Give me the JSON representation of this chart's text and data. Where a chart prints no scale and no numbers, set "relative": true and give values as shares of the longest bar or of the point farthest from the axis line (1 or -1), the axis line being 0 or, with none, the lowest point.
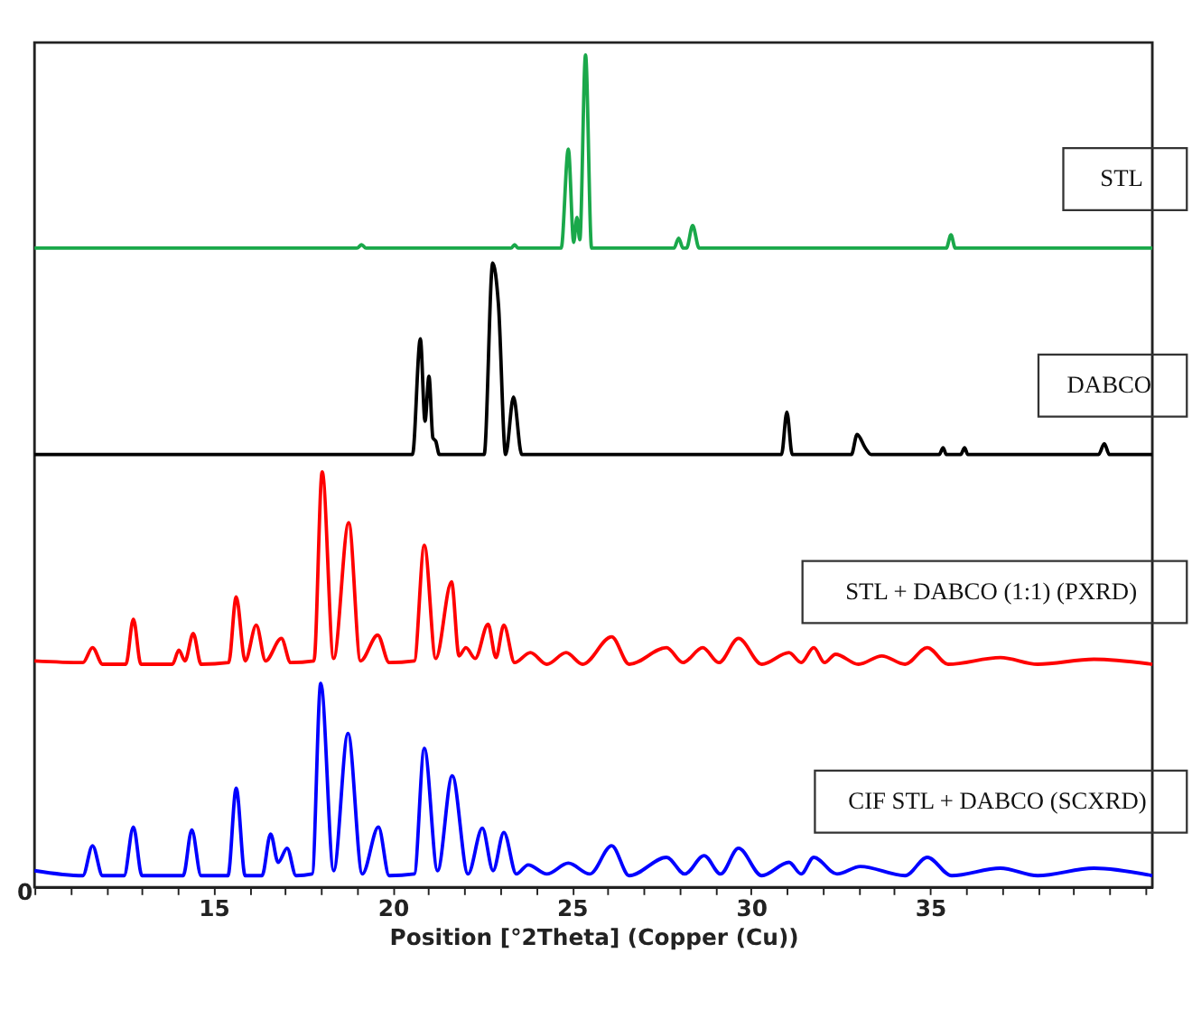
{
  "chart_data": {
    "type": "line",
    "relative": true,
    "xlabel": "Position [°2Theta] (Copper (Cu))",
    "xlim": [
      10,
      41.2
    ],
    "annotations": [
      "0"
    ],
    "xticks": [
      {
        "value": 10,
        "label": null
      },
      {
        "value": 11,
        "label": null
      },
      {
        "value": 12,
        "label": null
      },
      {
        "value": 13,
        "label": null
      },
      {
        "value": 14,
        "label": null
      },
      15,
      {
        "value": 16,
        "label": null
      },
      {
        "value": 17,
        "label": null
      },
      {
        "value": 18,
        "label": null
      },
      {
        "value": 19,
        "label": null
      },
      20,
      {
        "value": 21,
        "label": null
      },
      {
        "value": 22,
        "label": null
      },
      {
        "value": 23,
        "label": null
      },
      {
        "value": 24,
        "label": null
      },
      25,
      {
        "value": 26,
        "label": null
      },
      {
        "value": 27,
        "label": null
      },
      {
        "value": 28,
        "label": null
      },
      {
        "value": 29,
        "label": null
      },
      30,
      {
        "value": 31,
        "label": null
      },
      {
        "value": 32,
        "label": null
      },
      {
        "value": 33,
        "label": null
      },
      {
        "value": 34,
        "label": null
      },
      35,
      {
        "value": 36,
        "label": null
      },
      {
        "value": 37,
        "label": null
      },
      {
        "value": 38,
        "label": null
      },
      {
        "value": 39,
        "label": null
      },
      {
        "value": 40,
        "label": null
      },
      {
        "value": 41,
        "label": null
      }
    ],
    "grid": false,
    "legend": false,
    "marker": "none",
    "line_style": "solid",
    "series": [
      {
        "name": "STL",
        "color": "#1aa84a",
        "x": [
          10,
          19.0,
          19.13,
          19.25,
          23.3,
          23.4,
          23.5,
          24.7,
          24.9,
          25.05,
          25.14,
          25.22,
          25.38,
          25.55,
          27.85,
          27.98,
          28.1,
          28.2,
          28.37,
          28.55,
          35.45,
          35.58,
          35.7,
          41.2
        ],
        "values": [
          0.768,
          0.768,
          0.772,
          0.768,
          0.768,
          0.772,
          0.768,
          0.768,
          0.887,
          0.775,
          0.805,
          0.778,
          1.0,
          0.768,
          0.768,
          0.78,
          0.768,
          0.768,
          0.795,
          0.768,
          0.768,
          0.784,
          0.768,
          0.768
        ]
      },
      {
        "name": "DABCO",
        "color": "#000000",
        "x": [
          10,
          20.55,
          20.77,
          20.9,
          21.01,
          21.12,
          21.2,
          21.3,
          22.55,
          22.79,
          22.95,
          23.15,
          23.37,
          23.6,
          30.85,
          31.0,
          31.15,
          32.8,
          32.96,
          33.2,
          33.35,
          35.25,
          35.36,
          35.45,
          35.85,
          35.96,
          36.05,
          39.7,
          39.86,
          40.0,
          41.2
        ],
        "values": [
          0.52,
          0.52,
          0.659,
          0.56,
          0.614,
          0.54,
          0.536,
          0.52,
          0.52,
          0.75,
          0.7,
          0.52,
          0.589,
          0.52,
          0.52,
          0.571,
          0.52,
          0.52,
          0.544,
          0.527,
          0.52,
          0.52,
          0.528,
          0.52,
          0.52,
          0.528,
          0.52,
          0.52,
          0.533,
          0.52,
          0.52
        ]
      },
      {
        "name": "STL + DABCO (1:1) (PXRD)",
        "color": "#ff0000",
        "x": [
          10,
          11.35,
          11.62,
          11.9,
          12.55,
          12.76,
          12.97,
          13.85,
          14.03,
          14.2,
          14.43,
          14.65,
          15.42,
          15.63,
          15.88,
          16.19,
          16.45,
          16.89,
          17.15,
          17.8,
          18.03,
          18.35,
          18.77,
          19.1,
          19.58,
          19.9,
          20.6,
          20.88,
          21.2,
          21.64,
          21.85,
          22.04,
          22.3,
          22.66,
          22.88,
          23.1,
          23.4,
          23.84,
          24.3,
          24.84,
          25.3,
          26.11,
          26.6,
          27.64,
          28.1,
          28.65,
          29.1,
          29.65,
          30.3,
          31.06,
          31.4,
          31.75,
          32.05,
          32.36,
          33.0,
          33.65,
          34.3,
          34.92,
          35.5,
          36.96,
          38.0,
          39.57,
          41.2
        ],
        "values": [
          0.272,
          0.27,
          0.288,
          0.268,
          0.268,
          0.322,
          0.268,
          0.268,
          0.285,
          0.272,
          0.305,
          0.268,
          0.27,
          0.349,
          0.272,
          0.315,
          0.272,
          0.299,
          0.27,
          0.272,
          0.499,
          0.275,
          0.438,
          0.272,
          0.303,
          0.27,
          0.272,
          0.411,
          0.275,
          0.367,
          0.278,
          0.288,
          0.275,
          0.316,
          0.276,
          0.315,
          0.27,
          0.282,
          0.268,
          0.282,
          0.268,
          0.301,
          0.268,
          0.288,
          0.27,
          0.288,
          0.27,
          0.299,
          0.268,
          0.282,
          0.27,
          0.288,
          0.27,
          0.28,
          0.268,
          0.278,
          0.268,
          0.288,
          0.268,
          0.276,
          0.268,
          0.274,
          0.268
        ]
      },
      {
        "name": "CIF STL + DABCO (SCXRD)",
        "color": "#0000ff",
        "x": [
          10,
          11.35,
          11.62,
          11.9,
          12.5,
          12.76,
          13.0,
          14.15,
          14.39,
          14.65,
          15.4,
          15.63,
          15.88,
          16.35,
          16.59,
          16.8,
          17.05,
          17.3,
          17.75,
          17.99,
          18.35,
          18.75,
          19.15,
          19.6,
          19.9,
          20.6,
          20.88,
          21.25,
          21.66,
          22.1,
          22.5,
          22.8,
          23.1,
          23.45,
          23.78,
          24.3,
          24.9,
          25.5,
          26.11,
          26.6,
          27.64,
          28.15,
          28.69,
          29.15,
          29.65,
          30.3,
          31.06,
          31.4,
          31.75,
          32.4,
          33.05,
          34.3,
          34.92,
          35.6,
          36.96,
          38.0,
          39.57,
          41.2
        ],
        "values": [
          0.02,
          0.014,
          0.05,
          0.014,
          0.014,
          0.0725,
          0.014,
          0.014,
          0.069,
          0.014,
          0.014,
          0.119,
          0.014,
          0.014,
          0.064,
          0.03,
          0.047,
          0.014,
          0.016,
          0.245,
          0.02,
          0.185,
          0.016,
          0.0725,
          0.014,
          0.016,
          0.167,
          0.02,
          0.134,
          0.016,
          0.071,
          0.02,
          0.066,
          0.016,
          0.027,
          0.016,
          0.029,
          0.016,
          0.05,
          0.014,
          0.036,
          0.016,
          0.038,
          0.016,
          0.047,
          0.014,
          0.03,
          0.016,
          0.036,
          0.016,
          0.025,
          0.014,
          0.036,
          0.014,
          0.023,
          0.014,
          0.023,
          0.014
        ]
      }
    ]
  }
}
